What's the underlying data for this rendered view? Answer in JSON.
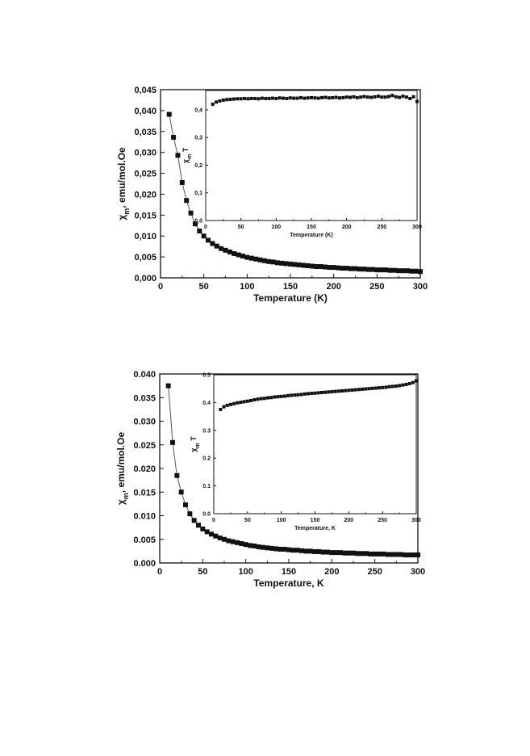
{
  "chart_data": [
    {
      "type": "scatter",
      "x_values": [
        10,
        15,
        20,
        25,
        30,
        35,
        40,
        45,
        50,
        55,
        60,
        65,
        70,
        75,
        80,
        85,
        90,
        95,
        100,
        105,
        110,
        115,
        120,
        125,
        130,
        135,
        140,
        145,
        150,
        155,
        160,
        165,
        170,
        175,
        180,
        185,
        190,
        195,
        200,
        205,
        210,
        215,
        220,
        225,
        230,
        235,
        240,
        245,
        250,
        255,
        260,
        265,
        270,
        275,
        280,
        285,
        290,
        295,
        300
      ],
      "series": [
        {
          "values": [
            0.0391,
            0.0336,
            0.0293,
            0.0228,
            0.0185,
            0.0155,
            0.0129,
            0.0112,
            0.01,
            0.009,
            0.0082,
            0.0076,
            0.007,
            0.0066,
            0.0062,
            0.0058,
            0.0055,
            0.0052,
            0.0049,
            0.0047,
            0.0045,
            0.0043,
            0.0041,
            0.0039,
            0.0038,
            0.0036,
            0.0035,
            0.0034,
            0.0033,
            0.0032,
            0.0031,
            0.003,
            0.0029,
            0.0028,
            0.0027,
            0.0027,
            0.0026,
            0.0025,
            0.0025,
            0.0024,
            0.0023,
            0.0023,
            0.0022,
            0.0022,
            0.0021,
            0.0021,
            0.002,
            0.002,
            0.0019,
            0.0019,
            0.0019,
            0.0018,
            0.0018,
            0.0017,
            0.0017,
            0.0017,
            0.0016,
            0.0016,
            0.0015
          ],
          "fit_line": true
        }
      ],
      "xlim": [
        0,
        300
      ],
      "ylim": [
        0,
        0.045
      ],
      "xticks": [
        "0",
        "50",
        "100",
        "150",
        "200",
        "250",
        "300"
      ],
      "yticks": [
        "0,000",
        "0,005",
        "0,010",
        "0,015",
        "0,020",
        "0,025",
        "0,030",
        "0,035",
        "0,040",
        "0,045"
      ],
      "xlabel": "Temperature (K)",
      "ylabel": "χm, emu/mol.Oe",
      "inset": {
        "type": "scatter",
        "x_values": [
          10,
          15,
          20,
          25,
          30,
          35,
          40,
          45,
          50,
          55,
          60,
          65,
          70,
          75,
          80,
          85,
          90,
          95,
          100,
          105,
          110,
          115,
          120,
          125,
          130,
          135,
          140,
          145,
          150,
          155,
          160,
          165,
          170,
          175,
          180,
          185,
          190,
          195,
          200,
          205,
          210,
          215,
          220,
          225,
          230,
          235,
          240,
          245,
          250,
          255,
          260,
          265,
          270,
          275,
          280,
          285,
          290,
          295,
          300
        ],
        "values": [
          0.42,
          0.428,
          0.432,
          0.435,
          0.437,
          0.438,
          0.439,
          0.44,
          0.44,
          0.441,
          0.44,
          0.441,
          0.441,
          0.44,
          0.442,
          0.441,
          0.441,
          0.442,
          0.441,
          0.443,
          0.442,
          0.441,
          0.443,
          0.442,
          0.442,
          0.444,
          0.442,
          0.443,
          0.444,
          0.443,
          0.442,
          0.444,
          0.445,
          0.443,
          0.444,
          0.445,
          0.443,
          0.444,
          0.446,
          0.445,
          0.447,
          0.444,
          0.446,
          0.448,
          0.446,
          0.445,
          0.447,
          0.449,
          0.446,
          0.446,
          0.448,
          0.452,
          0.447,
          0.445,
          0.449,
          0.446,
          0.441,
          0.447,
          0.43
        ],
        "xlim": [
          0,
          300
        ],
        "ylim": [
          0,
          0.47
        ],
        "xticks": [
          "0",
          "50",
          "100",
          "150",
          "200",
          "250",
          "300"
        ],
        "yticks": [
          "0,0",
          "0,1",
          "0,2",
          "0,3",
          "0,4"
        ],
        "xlabel": "Temperature (K)",
        "ylabel": "χm T"
      }
    },
    {
      "type": "scatter",
      "x_values": [
        10,
        15,
        20,
        25,
        30,
        35,
        40,
        45,
        50,
        55,
        60,
        65,
        70,
        75,
        80,
        85,
        90,
        95,
        100,
        105,
        110,
        115,
        120,
        125,
        130,
        135,
        140,
        145,
        150,
        155,
        160,
        165,
        170,
        175,
        180,
        185,
        190,
        195,
        200,
        205,
        210,
        215,
        220,
        225,
        230,
        235,
        240,
        245,
        250,
        255,
        260,
        265,
        270,
        275,
        280,
        285,
        290,
        295,
        300
      ],
      "series": [
        {
          "values": [
            0.0375,
            0.0255,
            0.0185,
            0.015,
            0.0123,
            0.0104,
            0.009,
            0.008,
            0.0072,
            0.0066,
            0.0061,
            0.0057,
            0.0053,
            0.005,
            0.0047,
            0.0045,
            0.0043,
            0.0041,
            0.0039,
            0.0037,
            0.0036,
            0.0034,
            0.0033,
            0.0032,
            0.0031,
            0.003,
            0.0029,
            0.0029,
            0.0028,
            0.0027,
            0.0027,
            0.0026,
            0.0025,
            0.0025,
            0.0024,
            0.0024,
            0.0023,
            0.0023,
            0.0022,
            0.0022,
            0.0022,
            0.0021,
            0.0021,
            0.0021,
            0.002,
            0.002,
            0.002,
            0.0019,
            0.0019,
            0.0019,
            0.0019,
            0.0018,
            0.0018,
            0.0018,
            0.0018,
            0.0017,
            0.0017,
            0.0017,
            0.0017
          ],
          "fit_line": true
        }
      ],
      "xlim": [
        0,
        300
      ],
      "ylim": [
        0,
        0.04
      ],
      "xticks": [
        "0",
        "50",
        "100",
        "150",
        "200",
        "250",
        "300"
      ],
      "yticks": [
        "0.000",
        "0.005",
        "0.010",
        "0.015",
        "0.020",
        "0.025",
        "0.030",
        "0.035",
        "0.040"
      ],
      "xlabel": "Temperature, K",
      "ylabel": "χm, emu/mol.Oe",
      "inset": {
        "type": "scatter",
        "x_values": [
          10,
          15,
          20,
          25,
          30,
          35,
          40,
          45,
          50,
          55,
          60,
          65,
          70,
          75,
          80,
          85,
          90,
          95,
          100,
          105,
          110,
          115,
          120,
          125,
          130,
          135,
          140,
          145,
          150,
          155,
          160,
          165,
          170,
          175,
          180,
          185,
          190,
          195,
          200,
          205,
          210,
          215,
          220,
          225,
          230,
          235,
          240,
          245,
          250,
          255,
          260,
          265,
          270,
          275,
          280,
          285,
          290,
          295,
          300
        ],
        "values": [
          0.375,
          0.385,
          0.39,
          0.393,
          0.396,
          0.399,
          0.401,
          0.403,
          0.405,
          0.407,
          0.41,
          0.412,
          0.414,
          0.415,
          0.417,
          0.418,
          0.42,
          0.421,
          0.422,
          0.423,
          0.425,
          0.426,
          0.427,
          0.428,
          0.429,
          0.431,
          0.432,
          0.433,
          0.434,
          0.435,
          0.436,
          0.437,
          0.438,
          0.439,
          0.44,
          0.441,
          0.442,
          0.443,
          0.444,
          0.445,
          0.446,
          0.447,
          0.448,
          0.449,
          0.45,
          0.451,
          0.452,
          0.453,
          0.454,
          0.455,
          0.457,
          0.458,
          0.459,
          0.461,
          0.463,
          0.465,
          0.468,
          0.472,
          0.478
        ],
        "xlim": [
          0,
          300
        ],
        "ylim": [
          0,
          0.5
        ],
        "xticks": [
          "0",
          "50",
          "100",
          "150",
          "200",
          "250",
          "300"
        ],
        "yticks": [
          "0.0",
          "0.1",
          "0.2",
          "0.3",
          "0.4",
          "0.5"
        ],
        "xlabel": "Temperature, K",
        "ylabel": "χm T"
      }
    }
  ]
}
